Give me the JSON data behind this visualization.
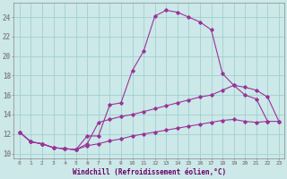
{
  "background_color": "#cce8e8",
  "line_color": "#993399",
  "grid_color": "#99cccc",
  "xlabel": "Windchill (Refroidissement éolien,°C)",
  "xlabel_color": "#660066",
  "tick_color": "#660066",
  "x_ticks": [
    0,
    1,
    2,
    3,
    4,
    5,
    6,
    7,
    8,
    9,
    10,
    11,
    12,
    13,
    14,
    15,
    16,
    17,
    18,
    19,
    20,
    21,
    22,
    23
  ],
  "y_ticks": [
    10,
    12,
    14,
    16,
    18,
    20,
    22,
    24
  ],
  "ylim": [
    9.5,
    25.5
  ],
  "xlim": [
    -0.5,
    23.5
  ],
  "line1_x": [
    0,
    1,
    2,
    3,
    4,
    5,
    6,
    7,
    8,
    9,
    10,
    11,
    12,
    13,
    14,
    15,
    16,
    17,
    18,
    19,
    20,
    21,
    22
  ],
  "line1_y": [
    12.2,
    11.2,
    11.0,
    10.6,
    10.5,
    10.4,
    11.8,
    11.8,
    15.0,
    15.2,
    18.5,
    20.5,
    24.1,
    24.7,
    24.5,
    24.0,
    23.5,
    22.7,
    18.2,
    17.0,
    16.0,
    15.6,
    13.3
  ],
  "line2_x": [
    0,
    1,
    2,
    3,
    4,
    5,
    6,
    7,
    8,
    9,
    10,
    11,
    12,
    13,
    14,
    15,
    16,
    17,
    18,
    19,
    20,
    21,
    22,
    23
  ],
  "line2_y": [
    12.2,
    11.2,
    11.0,
    10.6,
    10.5,
    10.4,
    11.0,
    13.2,
    13.5,
    13.8,
    14.0,
    14.3,
    14.6,
    14.9,
    15.2,
    15.5,
    15.8,
    16.0,
    16.5,
    17.0,
    16.8,
    16.5,
    15.8,
    13.3
  ],
  "line3_x": [
    0,
    1,
    2,
    3,
    4,
    5,
    6,
    7,
    8,
    9,
    10,
    11,
    12,
    13,
    14,
    15,
    16,
    17,
    18,
    19,
    20,
    21,
    22,
    23
  ],
  "line3_y": [
    12.2,
    11.2,
    11.0,
    10.6,
    10.5,
    10.4,
    10.8,
    11.0,
    11.3,
    11.5,
    11.8,
    12.0,
    12.2,
    12.4,
    12.6,
    12.8,
    13.0,
    13.2,
    13.4,
    13.5,
    13.3,
    13.2,
    13.3,
    13.3
  ]
}
